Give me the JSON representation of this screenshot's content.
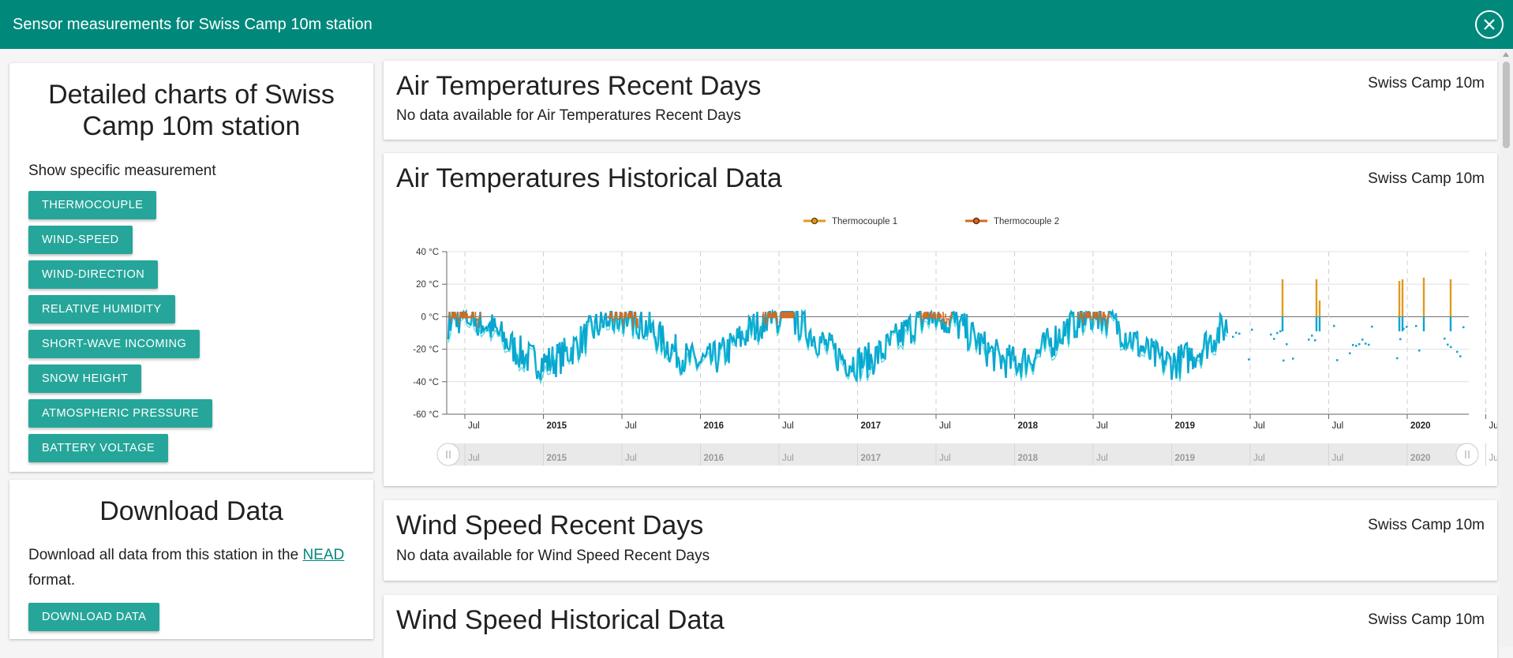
{
  "header": {
    "title": "Sensor measurements for Swiss Camp 10m station",
    "close_icon": "close-icon"
  },
  "left": {
    "details_title": "Detailed charts of Swiss Camp 10m station",
    "show_label": "Show specific measurement",
    "buttons": [
      "THERMOCOUPLE",
      "WIND-SPEED",
      "WIND-DIRECTION",
      "RELATIVE HUMIDITY",
      "SHORT-WAVE INCOMING",
      "SNOW HEIGHT",
      "ATMOSPHERIC PRESSURE",
      "BATTERY VOLTAGE"
    ],
    "download": {
      "title": "Download Data",
      "text_before": "Download all data from this station in the ",
      "link": "NEAD",
      "text_after": " format.",
      "button": "DOWNLOAD DATA"
    }
  },
  "cards": [
    {
      "title": "Air Temperatures Recent Days",
      "station": "Swiss Camp 10m",
      "nodata": "No data available for Air Temperatures Recent Days"
    },
    {
      "title": "Air Temperatures Historical Data",
      "station": "Swiss Camp 10m"
    },
    {
      "title": "Wind Speed Recent Days",
      "station": "Swiss Camp 10m",
      "nodata": "No data available for Wind Speed Recent Days"
    },
    {
      "title": "Wind Speed Historical Data",
      "station": "Swiss Camp 10m"
    }
  ],
  "chart_data": {
    "type": "line",
    "title": "Air Temperatures Historical Data",
    "legend": [
      "Thermocouple 1",
      "Thermocouple 2"
    ],
    "legend_position": "top-center",
    "colors": {
      "tc1": "#e09a1e",
      "tc2": "#d2691e",
      "cold": "#0aa5cf",
      "cold_light": "#16c8d8"
    },
    "y_ticks": [
      "40 °C",
      "20 °C",
      "0 °C",
      "-20 °C",
      "-40 °C",
      "-60 °C"
    ],
    "ylim": [
      -60,
      40
    ],
    "x_ticks": [
      "Jul",
      "2015",
      "Jul",
      "2016",
      "Jul",
      "2017",
      "Jul",
      "2018",
      "Jul",
      "2019",
      "Jul",
      "Jul",
      "2020",
      "Jul"
    ],
    "x_bold": [
      "2015",
      "2016",
      "2017",
      "2018",
      "2019",
      "2020"
    ],
    "xlim": [
      "2014-05",
      "2020-11"
    ],
    "grid": true,
    "navigator": true,
    "series": [
      {
        "name": "Thermocouple 1",
        "values": []
      },
      {
        "name": "Thermocouple 2",
        "values": []
      }
    ],
    "summer_peak": 3,
    "winter_min": -43,
    "spikes_2019_2020": [
      23,
      23,
      10,
      22,
      23,
      24,
      23
    ]
  }
}
